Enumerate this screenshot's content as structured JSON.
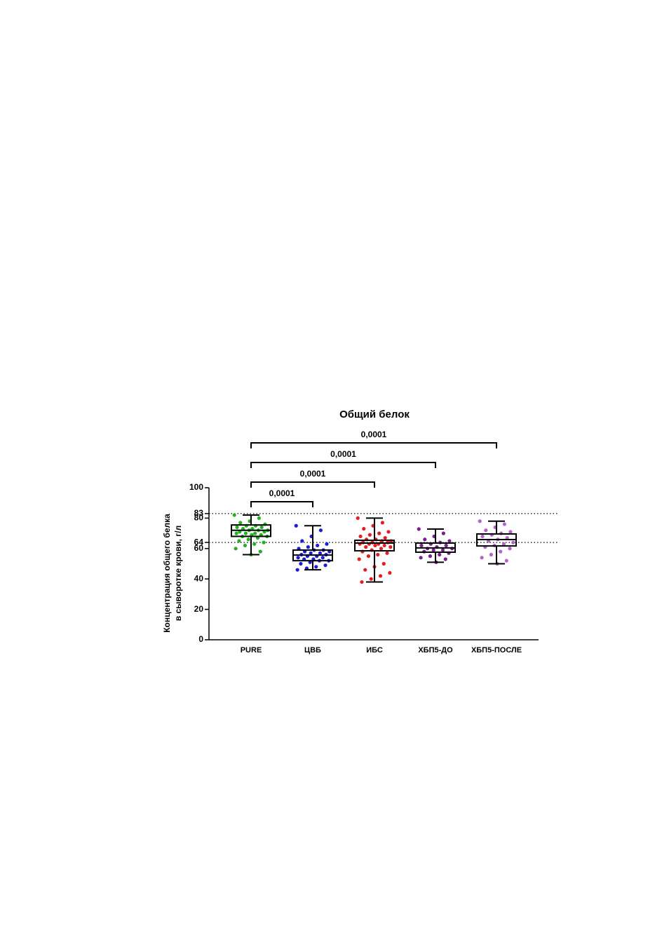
{
  "chart_data": {
    "type": "box",
    "title": "Общий белок",
    "y_label": [
      "Концентрация общего белка",
      "в сыворотке крови, г/л"
    ],
    "ylim": [
      0,
      100
    ],
    "yticks": [
      0,
      20,
      40,
      60,
      64,
      80,
      83,
      100
    ],
    "ref_lines": [
      64,
      83
    ],
    "categories": [
      "PURE",
      "ЦВБ",
      "ИБС",
      "ХБП5-ДО",
      "ХБП5-ПОСЛЕ"
    ],
    "series": [
      {
        "name": "PURE",
        "color": "#22b322",
        "min": 56,
        "q1": 68,
        "median": 72,
        "q3": 75.5,
        "max": 82,
        "points": [
          82,
          80,
          78,
          77,
          76,
          75,
          75,
          74,
          74,
          73,
          73,
          72,
          72,
          72,
          71,
          71,
          70,
          70,
          70,
          69,
          69,
          68,
          68,
          67,
          66,
          65,
          64,
          63,
          62,
          60,
          58,
          56
        ]
      },
      {
        "name": "ЦВБ",
        "color": "#1c1ce0",
        "min": 46,
        "q1": 52,
        "median": 55.7,
        "q3": 59,
        "max": 75,
        "points": [
          75,
          72,
          68,
          65,
          63,
          62,
          61,
          60,
          59,
          59,
          58,
          58,
          57,
          57,
          56,
          56,
          55,
          55,
          54,
          54,
          53,
          53,
          52,
          52,
          51,
          50,
          49,
          48,
          47,
          46
        ]
      },
      {
        "name": "ИБС",
        "color": "#e41e1e",
        "min": 38,
        "q1": 58.5,
        "median": 63.6,
        "q3": 65.4,
        "max": 80,
        "points": [
          80,
          77,
          75,
          73,
          71,
          70,
          69,
          68,
          67,
          66,
          66,
          65,
          65,
          64,
          64,
          64,
          63,
          63,
          63,
          62,
          62,
          61,
          61,
          60,
          59,
          58,
          57,
          56,
          55,
          53,
          50,
          48,
          46,
          44,
          42,
          40,
          38
        ]
      },
      {
        "name": "ХБП5-ДО",
        "color": "#7a1f8c",
        "min": 51,
        "q1": 57.6,
        "median": 60.4,
        "q3": 63.6,
        "max": 72.8,
        "points": [
          72.8,
          70,
          68,
          66,
          65,
          64,
          63,
          62,
          62,
          61,
          60,
          60,
          59,
          59,
          58,
          57,
          56,
          55,
          54,
          53,
          51
        ]
      },
      {
        "name": "ХБП5-ПОСЛЕ",
        "color": "#b562cc",
        "min": 50,
        "q1": 61.7,
        "median": 65.9,
        "q3": 69.6,
        "max": 78,
        "points": [
          78,
          76,
          74,
          72,
          71,
          70,
          69,
          68,
          67,
          66,
          65,
          64,
          63,
          62,
          61,
          60,
          58,
          56,
          54,
          52,
          50
        ]
      }
    ],
    "comparisons": [
      {
        "groups": [
          "PURE",
          "ЦВБ"
        ],
        "label": "0,0001"
      },
      {
        "groups": [
          "PURE",
          "ИБС"
        ],
        "label": "0,0001"
      },
      {
        "groups": [
          "PURE",
          "ХБП5-ДО"
        ],
        "label": "0,0001"
      },
      {
        "groups": [
          "PURE",
          "ХБП5-ПОСЛЕ"
        ],
        "label": "0,0001"
      }
    ]
  }
}
